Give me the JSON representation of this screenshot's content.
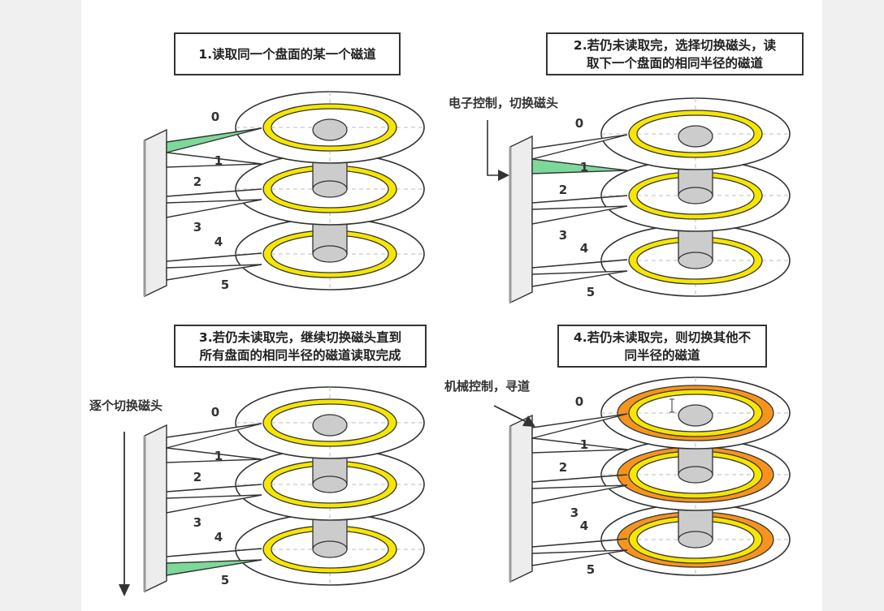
{
  "panels": [
    {
      "title": "1.读取同一个盘面的某一个磁道",
      "note": "",
      "highlight": "head0"
    },
    {
      "title": "2.若仍未读取完，选择切换磁头，读\n取下一个盘面的相同半径的磁道",
      "note": "电子控制，切换磁头",
      "highlight": "head1"
    },
    {
      "title": "3.若仍未读取完，继续切换磁头直到\n所有盘面的相同半径的磁道读取完成",
      "note": "逐个切换磁头",
      "highlight": "head5"
    },
    {
      "title": "4.若仍未读取完，则切换其他不\n同半径的磁道",
      "note": "机械控制，寻道",
      "highlight": "orange-tracks"
    }
  ],
  "head_labels": [
    "0",
    "1",
    "2",
    "3",
    "4",
    "5"
  ],
  "colors": {
    "track_yellow": "#f6e600",
    "track_orange": "#f7941d",
    "active_head": "#7dd99a",
    "spindle": "#cccccc",
    "outline": "#333333"
  },
  "cursor_icon": "text-cursor-icon"
}
